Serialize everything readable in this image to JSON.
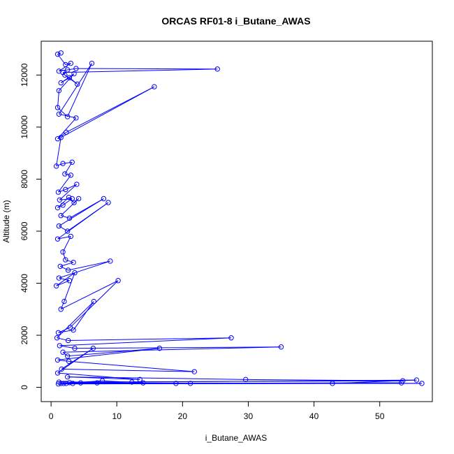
{
  "chart_data": {
    "type": "line",
    "title": "ORCAS RF01-8 i_Butane_AWAS",
    "xlabel": "i_Butane_AWAS",
    "ylabel": "Altitude (m)",
    "xlim": [
      -1.5,
      58
    ],
    "ylim": [
      -550,
      13300
    ],
    "xticks": [
      0,
      10,
      20,
      30,
      40,
      50
    ],
    "yticks": [
      0,
      2000,
      4000,
      6000,
      8000,
      10000,
      12000
    ],
    "series_color": "#0000ff",
    "markers": "open-circle",
    "grid": false,
    "series": [
      {
        "x": [
          1.5,
          1.0,
          2.2,
          3.0,
          1.2,
          2.5,
          3.8,
          25.3,
          1.8,
          2.1,
          4.0,
          2.8,
          1.5,
          3.5,
          1.2,
          1.0,
          2.5,
          6.2,
          1.2,
          3.8,
          1.0,
          2.3,
          15.7,
          1.5,
          0.8,
          1.8,
          3.2,
          2.1,
          3.0,
          1.1,
          2.2,
          3.9,
          1.3,
          3.2,
          1.8,
          1.0,
          2.7,
          3.5,
          4.2,
          1.5,
          2.8,
          8.0,
          1.2,
          2.5,
          8.7,
          1.0,
          3.0,
          1.8,
          2.2,
          3.4,
          1.4,
          2.6,
          9.0,
          1.2,
          2.8,
          0.8,
          3.6,
          2.0,
          1.5,
          10.2,
          2.9,
          1.1,
          3.4,
          6.5,
          0.9,
          2.6,
          27.4,
          1.3,
          3.6,
          35.0,
          1.8,
          2.5,
          16.5,
          1.0,
          2.7,
          21.8,
          1.6,
          6.4,
          1.0,
          13.5,
          2.5,
          29.6,
          53.5,
          1.2,
          12.3,
          2.8,
          55.6,
          42.8,
          1.5,
          7.0,
          19.0,
          2.3,
          56.4,
          1.1,
          4.5,
          21.2,
          3.3,
          53.3,
          1.9,
          7.8,
          14.0
        ],
        "y": [
          12850,
          12800,
          12400,
          12450,
          12150,
          12200,
          12250,
          12230,
          12100,
          12000,
          11650,
          11900,
          11700,
          12050,
          11400,
          10750,
          10400,
          12450,
          10500,
          10350,
          9550,
          9800,
          11550,
          9600,
          8500,
          8600,
          8650,
          8200,
          8150,
          7500,
          7600,
          7800,
          7200,
          7250,
          7000,
          6900,
          7300,
          7100,
          7250,
          6600,
          6500,
          7250,
          6200,
          6000,
          7100,
          5700,
          5800,
          5200,
          4900,
          4800,
          4650,
          4500,
          4850,
          4200,
          4100,
          3900,
          4400,
          3300,
          3000,
          4100,
          2300,
          2100,
          2200,
          3300,
          1900,
          1800,
          1900,
          1600,
          1500,
          1550,
          1350,
          1200,
          1500,
          1050,
          1000,
          600,
          700,
          1500,
          550,
          300,
          400,
          300,
          250,
          200,
          200,
          180,
          280,
          150,
          150,
          170,
          150,
          150,
          150,
          130,
          170,
          150,
          150,
          170,
          150,
          250,
          170
        ]
      }
    ]
  }
}
